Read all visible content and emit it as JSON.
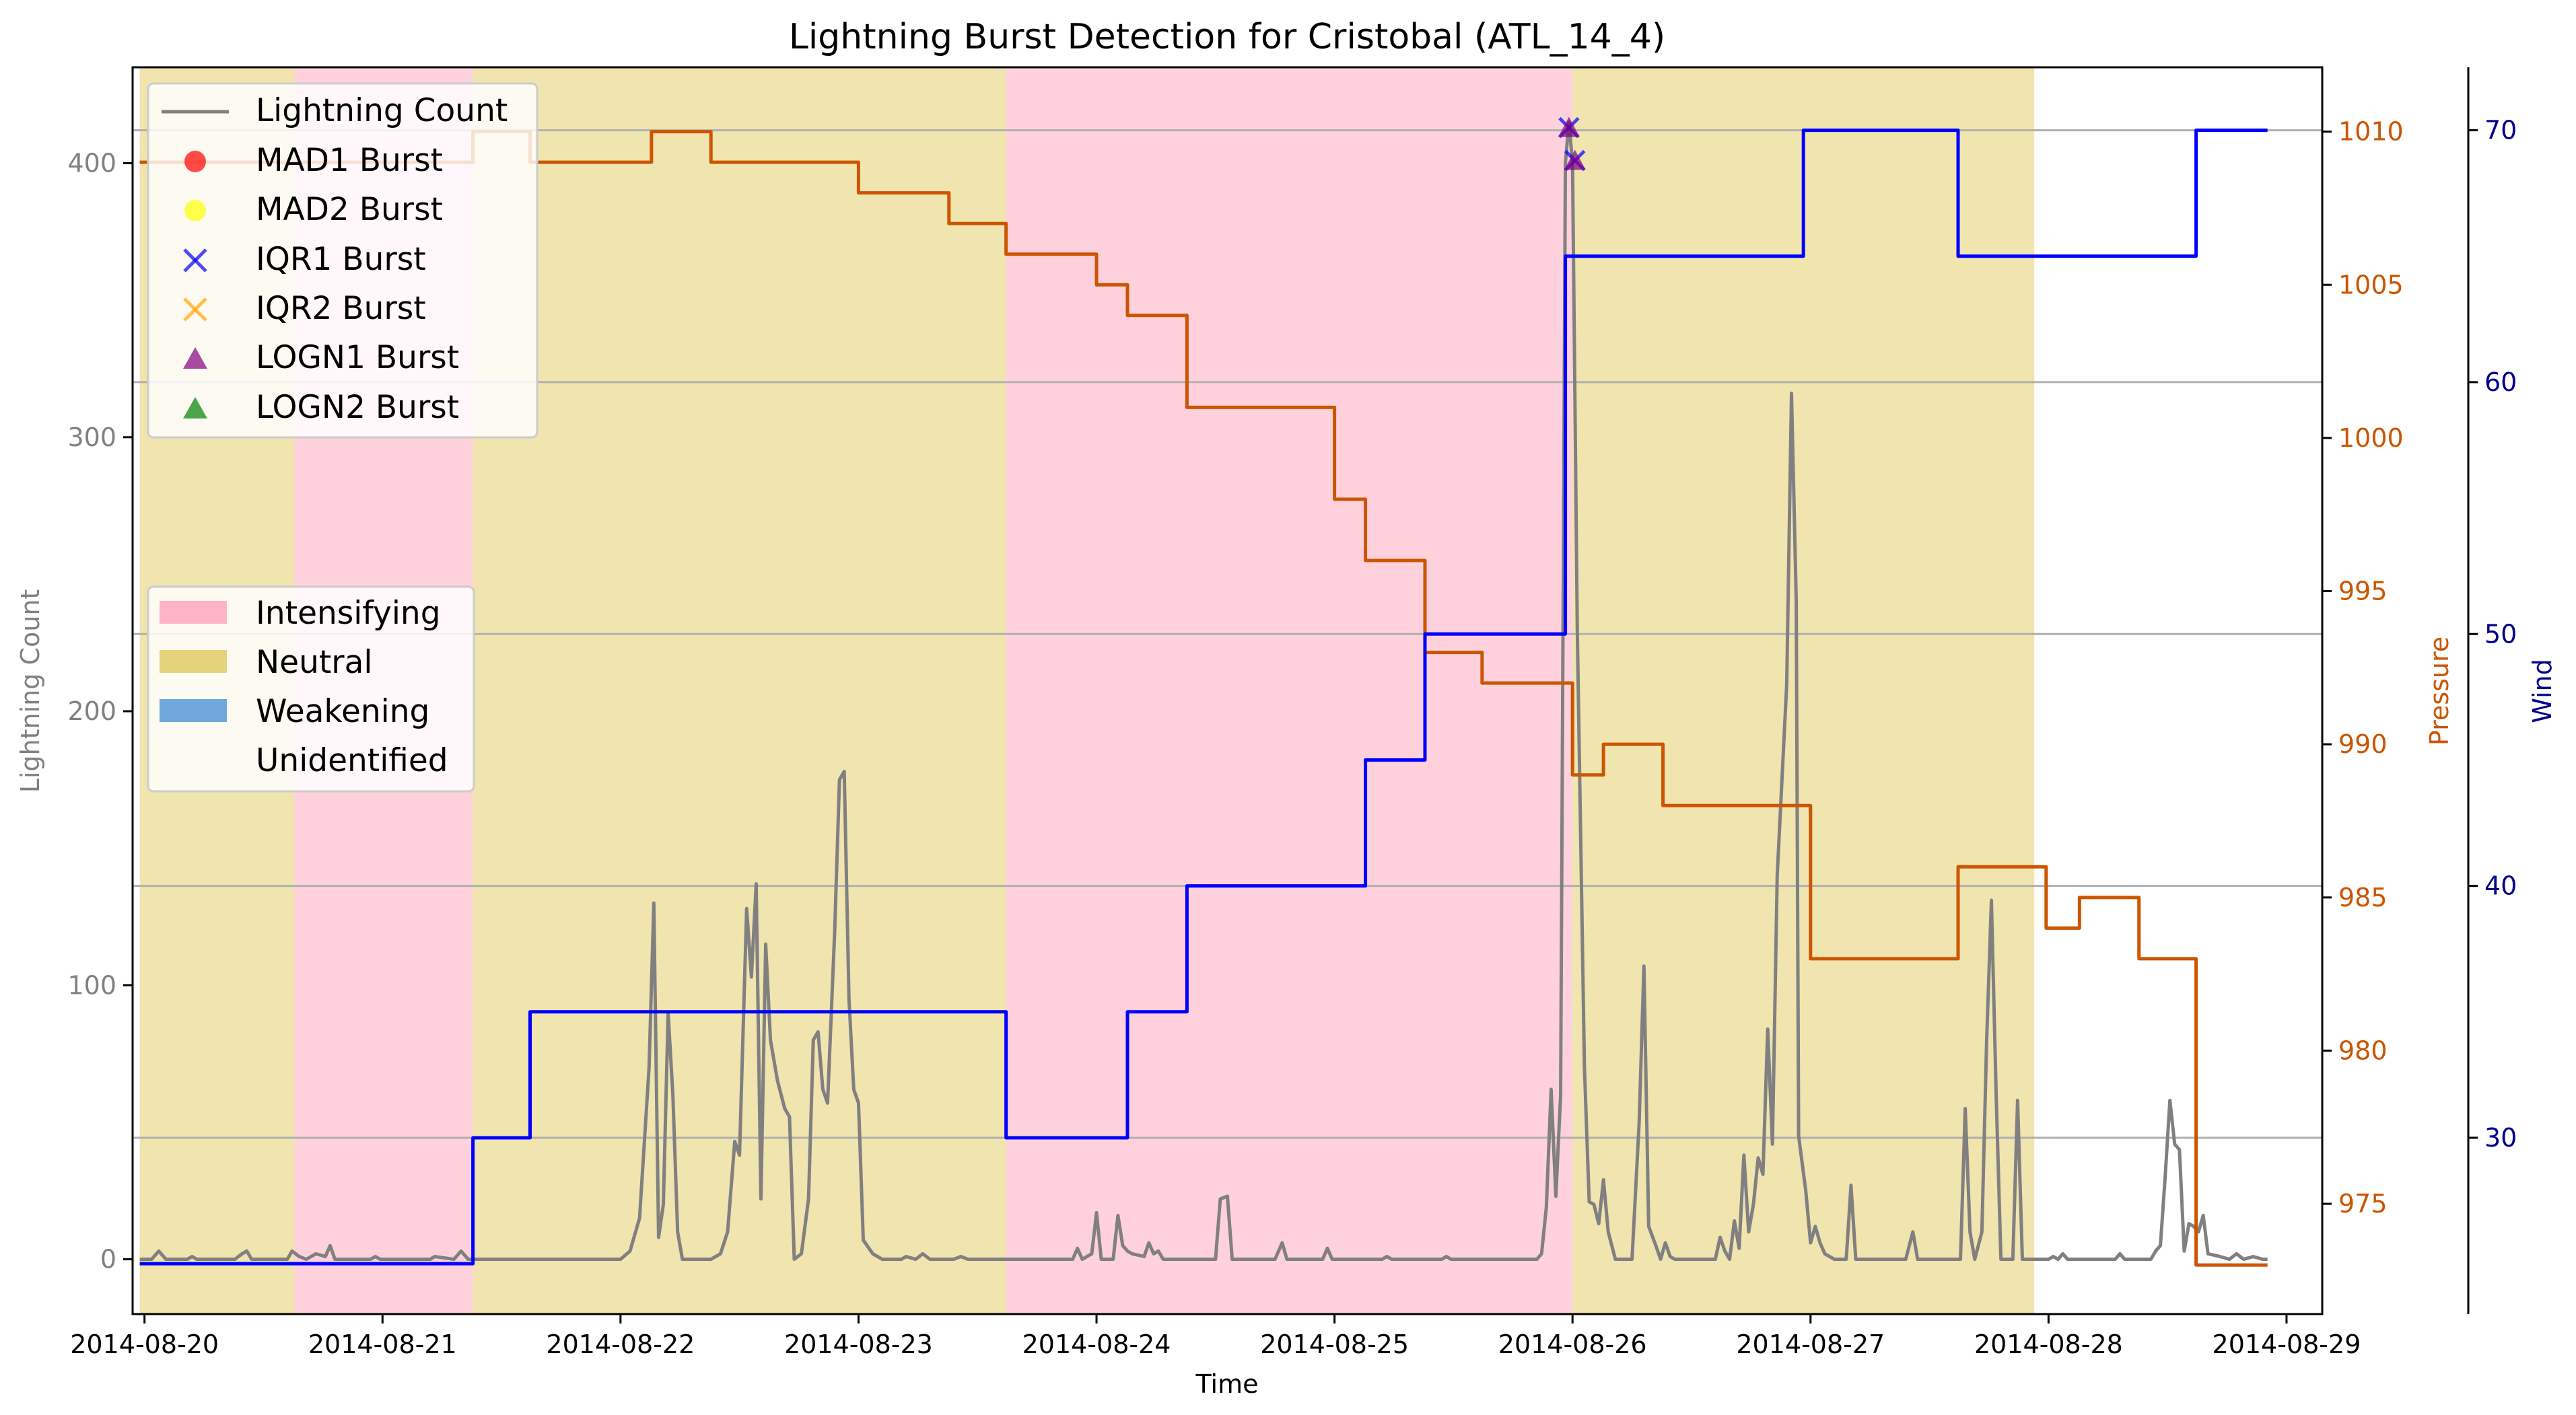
{
  "chart_data": {
    "type": "line",
    "title": "Lightning Burst Detection for Cristobal (ATL_14_4)",
    "xlabel": "Time",
    "ylabel_left": "Lightning Count",
    "ylabel_pressure": "Pressure",
    "ylabel_wind": "Wind",
    "x_ticks": [
      "2014-08-20",
      "2014-08-21",
      "2014-08-22",
      "2014-08-23",
      "2014-08-24",
      "2014-08-25",
      "2014-08-26",
      "2014-08-27",
      "2014-08-28",
      "2014-08-29"
    ],
    "y_left_ticks": [
      0,
      100,
      200,
      300,
      400
    ],
    "y_pressure_ticks": [
      975,
      980,
      985,
      990,
      995,
      1000,
      1005,
      1010
    ],
    "y_wind_ticks": [
      30,
      40,
      50,
      60,
      70
    ],
    "xlim": [
      -0.05,
      9.15
    ],
    "ylim_left": [
      -20,
      435
    ],
    "ylim_pressure": [
      971.4,
      1012.1
    ],
    "ylim_wind": [
      23.0,
      72.5
    ],
    "grid": "horizontal",
    "colors": {
      "lightning": "#808080",
      "pressure": "#cc5500",
      "wind": "#0000ff",
      "wind_axis": "#00008b",
      "intensifying": "#ffb3c6",
      "neutral": "#e6d27a",
      "weakening": "#6fa8dc",
      "mad1": "#ff0000",
      "mad2": "#ffff00",
      "iqr1": "#0000ff",
      "iqr2": "#ffa500",
      "logn1": "#800080",
      "logn2": "#008000"
    },
    "legend_series": {
      "lightning": "Lightning Count",
      "mad1": "MAD1 Burst",
      "mad2": "MAD2 Burst",
      "iqr1": "IQR1 Burst",
      "iqr2": "IQR2 Burst",
      "logn1": "LOGN1 Burst",
      "logn2": "LOGN2 Burst"
    },
    "legend_phases": {
      "intensifying": "Intensifying",
      "neutral": "Neutral",
      "weakening": "Weakening",
      "unidentified": "Unidentified"
    },
    "phase_spans": [
      {
        "phase": "neutral",
        "start": -0.02,
        "end": 0.63
      },
      {
        "phase": "intensifying",
        "start": 0.63,
        "end": 1.38
      },
      {
        "phase": "neutral",
        "start": 1.38,
        "end": 3.62
      },
      {
        "phase": "intensifying",
        "start": 3.62,
        "end": 6.0
      },
      {
        "phase": "neutral",
        "start": 6.0,
        "end": 7.94
      }
    ],
    "pressure": [
      [
        -0.02,
        1009
      ],
      [
        1.38,
        1009
      ],
      [
        1.38,
        1010
      ],
      [
        1.62,
        1010
      ],
      [
        1.62,
        1009
      ],
      [
        2.13,
        1009
      ],
      [
        2.13,
        1010
      ],
      [
        2.38,
        1010
      ],
      [
        2.38,
        1009
      ],
      [
        3.0,
        1009
      ],
      [
        3.0,
        1008
      ],
      [
        3.38,
        1008
      ],
      [
        3.38,
        1007
      ],
      [
        3.62,
        1007
      ],
      [
        3.62,
        1006
      ],
      [
        4.0,
        1006
      ],
      [
        4.0,
        1005
      ],
      [
        4.13,
        1005
      ],
      [
        4.13,
        1004
      ],
      [
        4.38,
        1004
      ],
      [
        4.38,
        1001
      ],
      [
        5.0,
        1001
      ],
      [
        5.0,
        998
      ],
      [
        5.13,
        998
      ],
      [
        5.13,
        996
      ],
      [
        5.38,
        996
      ],
      [
        5.38,
        993
      ],
      [
        5.62,
        993
      ],
      [
        5.62,
        992
      ],
      [
        6.0,
        992
      ],
      [
        6.0,
        989
      ],
      [
        6.13,
        989
      ],
      [
        6.13,
        990
      ],
      [
        6.38,
        990
      ],
      [
        6.38,
        988
      ],
      [
        7.0,
        988
      ],
      [
        7.0,
        983
      ],
      [
        7.62,
        983
      ],
      [
        7.62,
        986
      ],
      [
        7.99,
        986
      ],
      [
        7.99,
        984
      ],
      [
        8.13,
        984
      ],
      [
        8.13,
        985
      ],
      [
        8.38,
        985
      ],
      [
        8.38,
        983
      ],
      [
        8.62,
        983
      ],
      [
        8.62,
        973
      ],
      [
        8.92,
        973
      ]
    ],
    "wind": [
      [
        -0.02,
        25
      ],
      [
        1.38,
        25
      ],
      [
        1.38,
        30
      ],
      [
        1.62,
        30
      ],
      [
        1.62,
        35
      ],
      [
        3.62,
        35
      ],
      [
        3.62,
        30
      ],
      [
        4.13,
        30
      ],
      [
        4.13,
        35
      ],
      [
        4.38,
        35
      ],
      [
        4.38,
        40
      ],
      [
        5.13,
        40
      ],
      [
        5.13,
        45
      ],
      [
        5.38,
        45
      ],
      [
        5.38,
        50
      ],
      [
        5.97,
        50
      ],
      [
        5.97,
        65
      ],
      [
        6.97,
        65
      ],
      [
        6.97,
        70
      ],
      [
        7.62,
        70
      ],
      [
        7.62,
        65
      ],
      [
        8.62,
        65
      ],
      [
        8.62,
        70
      ],
      [
        8.92,
        70
      ]
    ],
    "lightning": [
      [
        -0.02,
        0
      ],
      [
        0.03,
        0
      ],
      [
        0.06,
        3
      ],
      [
        0.09,
        0
      ],
      [
        0.18,
        0
      ],
      [
        0.2,
        1
      ],
      [
        0.22,
        0
      ],
      [
        0.38,
        0
      ],
      [
        0.41,
        2
      ],
      [
        0.43,
        3
      ],
      [
        0.45,
        0
      ],
      [
        0.6,
        0
      ],
      [
        0.62,
        3
      ],
      [
        0.65,
        1
      ],
      [
        0.68,
        0
      ],
      [
        0.72,
        2
      ],
      [
        0.76,
        1
      ],
      [
        0.78,
        5
      ],
      [
        0.8,
        0
      ],
      [
        0.95,
        0
      ],
      [
        0.97,
        1
      ],
      [
        0.99,
        0
      ],
      [
        1.2,
        0
      ],
      [
        1.22,
        1
      ],
      [
        1.3,
        0
      ],
      [
        1.33,
        3
      ],
      [
        1.36,
        0
      ],
      [
        2.0,
        0
      ],
      [
        2.04,
        3
      ],
      [
        2.08,
        15
      ],
      [
        2.12,
        70
      ],
      [
        2.14,
        130
      ],
      [
        2.16,
        8
      ],
      [
        2.18,
        20
      ],
      [
        2.2,
        90
      ],
      [
        2.22,
        60
      ],
      [
        2.24,
        10
      ],
      [
        2.26,
        0
      ],
      [
        2.38,
        0
      ],
      [
        2.42,
        2
      ],
      [
        2.45,
        10
      ],
      [
        2.48,
        43
      ],
      [
        2.5,
        38
      ],
      [
        2.53,
        128
      ],
      [
        2.55,
        103
      ],
      [
        2.57,
        137
      ],
      [
        2.59,
        22
      ],
      [
        2.61,
        115
      ],
      [
        2.63,
        80
      ],
      [
        2.66,
        65
      ],
      [
        2.69,
        55
      ],
      [
        2.71,
        52
      ],
      [
        2.73,
        0
      ],
      [
        2.76,
        2
      ],
      [
        2.79,
        22
      ],
      [
        2.81,
        80
      ],
      [
        2.83,
        83
      ],
      [
        2.85,
        62
      ],
      [
        2.87,
        57
      ],
      [
        2.9,
        120
      ],
      [
        2.92,
        175
      ],
      [
        2.94,
        178
      ],
      [
        2.96,
        95
      ],
      [
        2.98,
        62
      ],
      [
        3.0,
        57
      ],
      [
        3.02,
        7
      ],
      [
        3.06,
        2
      ],
      [
        3.1,
        0
      ],
      [
        3.18,
        0
      ],
      [
        3.2,
        1
      ],
      [
        3.24,
        0
      ],
      [
        3.27,
        2
      ],
      [
        3.3,
        0
      ],
      [
        3.4,
        0
      ],
      [
        3.43,
        1
      ],
      [
        3.46,
        0
      ],
      [
        3.9,
        0
      ],
      [
        3.92,
        4
      ],
      [
        3.94,
        0
      ],
      [
        3.98,
        2
      ],
      [
        4.0,
        17
      ],
      [
        4.02,
        0
      ],
      [
        4.07,
        0
      ],
      [
        4.09,
        16
      ],
      [
        4.11,
        5
      ],
      [
        4.13,
        3
      ],
      [
        4.15,
        2
      ],
      [
        4.2,
        1
      ],
      [
        4.22,
        6
      ],
      [
        4.24,
        2
      ],
      [
        4.26,
        3
      ],
      [
        4.28,
        0
      ],
      [
        4.5,
        0
      ],
      [
        4.52,
        22
      ],
      [
        4.55,
        23
      ],
      [
        4.57,
        0
      ],
      [
        4.75,
        0
      ],
      [
        4.78,
        6
      ],
      [
        4.8,
        0
      ],
      [
        4.95,
        0
      ],
      [
        4.97,
        4
      ],
      [
        4.99,
        0
      ],
      [
        5.2,
        0
      ],
      [
        5.22,
        1
      ],
      [
        5.24,
        0
      ],
      [
        5.45,
        0
      ],
      [
        5.47,
        1
      ],
      [
        5.49,
        0
      ],
      [
        5.85,
        0
      ],
      [
        5.87,
        2
      ],
      [
        5.89,
        19
      ],
      [
        5.91,
        62
      ],
      [
        5.93,
        23
      ],
      [
        5.95,
        60
      ],
      [
        5.97,
        400
      ],
      [
        5.985,
        415
      ],
      [
        6.0,
        400
      ],
      [
        6.02,
        230
      ],
      [
        6.05,
        70
      ],
      [
        6.07,
        21
      ],
      [
        6.09,
        20
      ],
      [
        6.11,
        13
      ],
      [
        6.13,
        29
      ],
      [
        6.15,
        10
      ],
      [
        6.18,
        0
      ],
      [
        6.25,
        0
      ],
      [
        6.28,
        50
      ],
      [
        6.3,
        107
      ],
      [
        6.32,
        12
      ],
      [
        6.35,
        5
      ],
      [
        6.37,
        0
      ],
      [
        6.39,
        6
      ],
      [
        6.41,
        1
      ],
      [
        6.43,
        0
      ],
      [
        6.6,
        0
      ],
      [
        6.62,
        8
      ],
      [
        6.64,
        3
      ],
      [
        6.66,
        0
      ],
      [
        6.68,
        14
      ],
      [
        6.7,
        4
      ],
      [
        6.72,
        38
      ],
      [
        6.74,
        10
      ],
      [
        6.76,
        20
      ],
      [
        6.78,
        37
      ],
      [
        6.8,
        31
      ],
      [
        6.82,
        84
      ],
      [
        6.84,
        42
      ],
      [
        6.86,
        140
      ],
      [
        6.88,
        175
      ],
      [
        6.9,
        210
      ],
      [
        6.92,
        316
      ],
      [
        6.94,
        240
      ],
      [
        6.95,
        45
      ],
      [
        6.98,
        25
      ],
      [
        7.0,
        6
      ],
      [
        7.02,
        12
      ],
      [
        7.04,
        6
      ],
      [
        7.06,
        2
      ],
      [
        7.1,
        0
      ],
      [
        7.15,
        0
      ],
      [
        7.17,
        27
      ],
      [
        7.19,
        0
      ],
      [
        7.4,
        0
      ],
      [
        7.43,
        10
      ],
      [
        7.45,
        0
      ],
      [
        7.63,
        0
      ],
      [
        7.65,
        55
      ],
      [
        7.67,
        10
      ],
      [
        7.69,
        0
      ],
      [
        7.72,
        10
      ],
      [
        7.74,
        80
      ],
      [
        7.76,
        131
      ],
      [
        7.78,
        60
      ],
      [
        7.8,
        0
      ],
      [
        7.85,
        0
      ],
      [
        7.87,
        58
      ],
      [
        7.89,
        0
      ],
      [
        8.0,
        0
      ],
      [
        8.02,
        1
      ],
      [
        8.04,
        0
      ],
      [
        8.06,
        2
      ],
      [
        8.08,
        0
      ],
      [
        8.28,
        0
      ],
      [
        8.3,
        2
      ],
      [
        8.32,
        0
      ],
      [
        8.43,
        0
      ],
      [
        8.45,
        3
      ],
      [
        8.47,
        5
      ],
      [
        8.49,
        30
      ],
      [
        8.51,
        58
      ],
      [
        8.53,
        42
      ],
      [
        8.55,
        40
      ],
      [
        8.57,
        3
      ],
      [
        8.59,
        13
      ],
      [
        8.61,
        12
      ],
      [
        8.63,
        10
      ],
      [
        8.65,
        16
      ],
      [
        8.67,
        2
      ],
      [
        8.72,
        1
      ],
      [
        8.76,
        0
      ],
      [
        8.79,
        2
      ],
      [
        8.82,
        0
      ],
      [
        8.86,
        1
      ],
      [
        8.9,
        0
      ],
      [
        8.92,
        0
      ]
    ],
    "bursts": [
      {
        "kind": "iqr1",
        "marker": "x",
        "x": 5.985,
        "y": 413
      },
      {
        "kind": "logn1",
        "marker": "triangle",
        "x": 5.985,
        "y": 413
      },
      {
        "kind": "iqr1",
        "marker": "x",
        "x": 6.01,
        "y": 401
      },
      {
        "kind": "logn1",
        "marker": "triangle",
        "x": 6.01,
        "y": 401
      }
    ]
  }
}
